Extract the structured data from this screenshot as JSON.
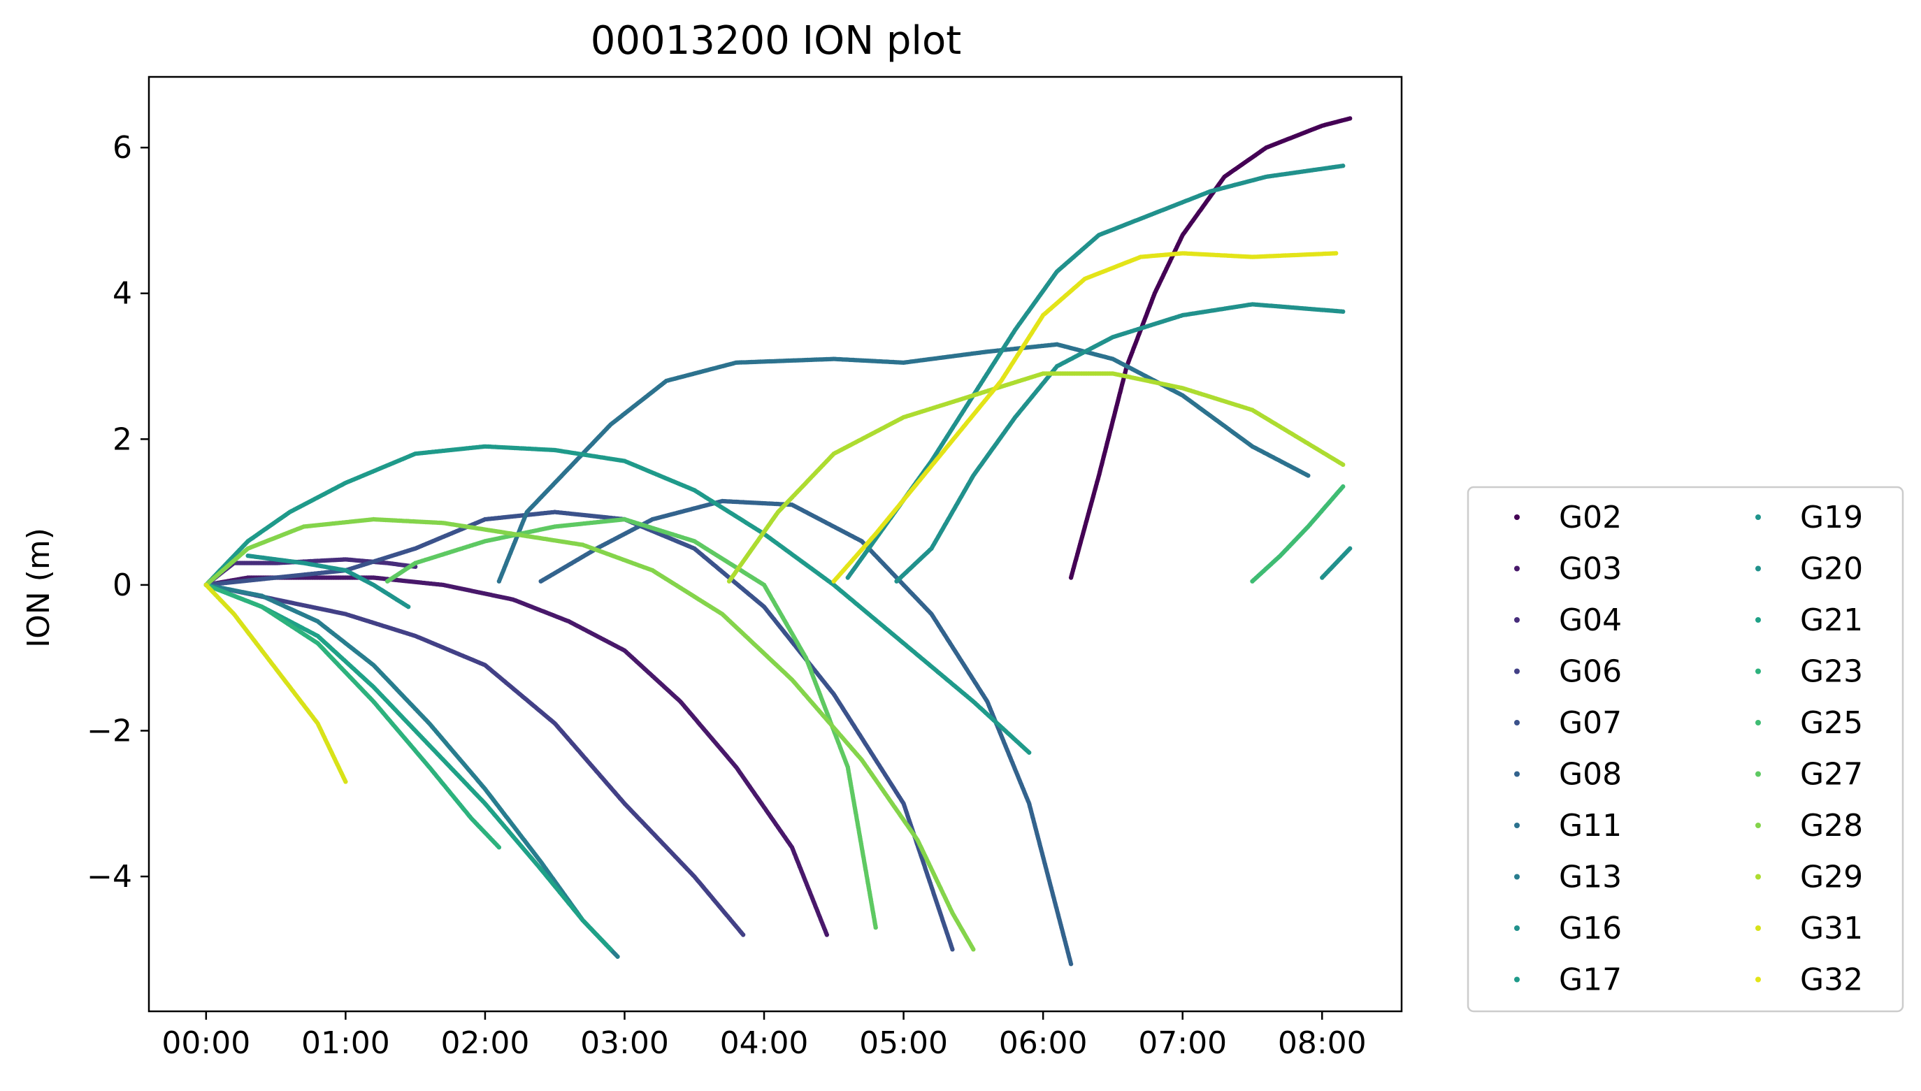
{
  "chart_data": {
    "type": "scatter",
    "title": "00013200 ION plot",
    "xlabel": "",
    "ylabel": "ION (m)",
    "x_unit": "hours",
    "xlim": [
      -0.41,
      8.57
    ],
    "ylim": [
      -5.85,
      6.97
    ],
    "x_ticks": [
      {
        "value": 0,
        "label": "00:00"
      },
      {
        "value": 1,
        "label": "01:00"
      },
      {
        "value": 2,
        "label": "02:00"
      },
      {
        "value": 3,
        "label": "03:00"
      },
      {
        "value": 4,
        "label": "04:00"
      },
      {
        "value": 5,
        "label": "05:00"
      },
      {
        "value": 6,
        "label": "06:00"
      },
      {
        "value": 7,
        "label": "07:00"
      },
      {
        "value": 8,
        "label": "08:00"
      }
    ],
    "y_ticks": [
      {
        "value": -4,
        "label": "−4"
      },
      {
        "value": -2,
        "label": "−2"
      },
      {
        "value": 0,
        "label": "0"
      },
      {
        "value": 2,
        "label": "2"
      },
      {
        "value": 4,
        "label": "4"
      },
      {
        "value": 6,
        "label": "6"
      }
    ],
    "grid": false,
    "legend": {
      "placement": "outside-right-bottom",
      "columns": 2
    },
    "series": [
      {
        "name": "G02",
        "color": "#440154",
        "segments": [
          [
            [
              6.2,
              0.1
            ],
            [
              6.4,
              1.5
            ],
            [
              6.6,
              3.0
            ],
            [
              6.8,
              4.0
            ],
            [
              7.0,
              4.8
            ],
            [
              7.3,
              5.6
            ],
            [
              7.6,
              6.0
            ],
            [
              8.0,
              6.3
            ],
            [
              8.2,
              6.4
            ]
          ]
        ]
      },
      {
        "name": "G03",
        "color": "#48186a",
        "segments": [
          [
            [
              0,
              0
            ],
            [
              0.3,
              0.1
            ],
            [
              0.7,
              0.1
            ],
            [
              1.2,
              0.1
            ],
            [
              1.7,
              0.0
            ],
            [
              2.2,
              -0.2
            ],
            [
              2.6,
              -0.5
            ],
            [
              3.0,
              -0.9
            ],
            [
              3.4,
              -1.6
            ],
            [
              3.8,
              -2.5
            ],
            [
              4.2,
              -3.6
            ],
            [
              4.45,
              -4.8
            ]
          ]
        ]
      },
      {
        "name": "G04",
        "color": "#472d7b",
        "segments": [
          [
            [
              0,
              0
            ],
            [
              0.2,
              0.3
            ],
            [
              0.5,
              0.3
            ],
            [
              1.0,
              0.35
            ],
            [
              1.3,
              0.3
            ],
            [
              1.5,
              0.25
            ]
          ]
        ]
      },
      {
        "name": "G06",
        "color": "#424086",
        "segments": [
          [
            [
              0,
              0
            ],
            [
              0.5,
              -0.2
            ],
            [
              1.0,
              -0.4
            ],
            [
              1.5,
              -0.7
            ],
            [
              2.0,
              -1.1
            ],
            [
              2.5,
              -1.9
            ],
            [
              3.0,
              -3.0
            ],
            [
              3.5,
              -4.0
            ],
            [
              3.85,
              -4.8
            ]
          ]
        ]
      },
      {
        "name": "G07",
        "color": "#3b528b",
        "segments": [
          [
            [
              0,
              0
            ],
            [
              0.5,
              0.1
            ],
            [
              1.0,
              0.2
            ],
            [
              1.5,
              0.5
            ],
            [
              2.0,
              0.9
            ],
            [
              2.5,
              1.0
            ],
            [
              3.0,
              0.9
            ],
            [
              3.5,
              0.5
            ],
            [
              4.0,
              -0.3
            ],
            [
              4.5,
              -1.5
            ],
            [
              5.0,
              -3.0
            ],
            [
              5.35,
              -5.0
            ]
          ]
        ]
      },
      {
        "name": "G08",
        "color": "#33638d",
        "segments": [
          [
            [
              2.4,
              0.05
            ],
            [
              2.8,
              0.5
            ],
            [
              3.2,
              0.9
            ],
            [
              3.7,
              1.15
            ],
            [
              4.2,
              1.1
            ],
            [
              4.7,
              0.6
            ],
            [
              5.2,
              -0.4
            ],
            [
              5.6,
              -1.6
            ],
            [
              5.9,
              -3.0
            ],
            [
              6.2,
              -5.2
            ]
          ]
        ]
      },
      {
        "name": "G11",
        "color": "#2c728e",
        "segments": [
          [
            [
              2.1,
              0.05
            ],
            [
              2.3,
              1.0
            ],
            [
              2.6,
              1.6
            ],
            [
              2.9,
              2.2
            ],
            [
              3.3,
              2.8
            ],
            [
              3.8,
              3.05
            ],
            [
              4.5,
              3.1
            ],
            [
              5.0,
              3.05
            ],
            [
              5.6,
              3.2
            ],
            [
              6.1,
              3.3
            ],
            [
              6.5,
              3.1
            ],
            [
              7.0,
              2.6
            ],
            [
              7.5,
              1.9
            ],
            [
              7.9,
              1.5
            ]
          ]
        ]
      },
      {
        "name": "G13",
        "color": "#287d8e",
        "segments": [
          [
            [
              0,
              0
            ],
            [
              0.4,
              -0.15
            ],
            [
              0.8,
              -0.5
            ],
            [
              1.2,
              -1.1
            ],
            [
              1.6,
              -1.9
            ],
            [
              2.0,
              -2.8
            ],
            [
              2.4,
              -3.8
            ],
            [
              2.7,
              -4.6
            ],
            [
              2.95,
              -5.1
            ]
          ]
        ]
      },
      {
        "name": "G16",
        "color": "#21918c",
        "segments": [
          [
            [
              4.95,
              0.05
            ],
            [
              5.2,
              0.5
            ],
            [
              5.5,
              1.5
            ],
            [
              5.8,
              2.3
            ],
            [
              6.1,
              3.0
            ],
            [
              6.5,
              3.4
            ],
            [
              7.0,
              3.7
            ],
            [
              7.5,
              3.85
            ],
            [
              8.15,
              3.75
            ]
          ],
          [
            [
              8.0,
              0.1
            ],
            [
              8.2,
              0.5
            ]
          ]
        ]
      },
      {
        "name": "G17",
        "color": "#1f9a8a",
        "segments": [
          [
            [
              0,
              0
            ],
            [
              0.3,
              0.6
            ],
            [
              0.6,
              1.0
            ],
            [
              1.0,
              1.4
            ],
            [
              1.5,
              1.8
            ],
            [
              2.0,
              1.9
            ],
            [
              2.5,
              1.85
            ],
            [
              3.0,
              1.7
            ],
            [
              3.5,
              1.3
            ],
            [
              4.0,
              0.7
            ],
            [
              4.5,
              0.0
            ],
            [
              5.0,
              -0.8
            ],
            [
              5.5,
              -1.6
            ],
            [
              5.9,
              -2.3
            ]
          ]
        ]
      },
      {
        "name": "G19",
        "color": "#1f948c",
        "segments": [
          [
            [
              0.3,
              0.4
            ],
            [
              0.7,
              0.3
            ],
            [
              1.0,
              0.2
            ],
            [
              1.2,
              0.0
            ],
            [
              1.45,
              -0.3
            ]
          ]
        ]
      },
      {
        "name": "G20",
        "color": "#21918c",
        "segments": [
          [
            [
              4.6,
              0.1
            ],
            [
              4.9,
              0.9
            ],
            [
              5.2,
              1.7
            ],
            [
              5.5,
              2.6
            ],
            [
              5.8,
              3.5
            ],
            [
              6.1,
              4.3
            ],
            [
              6.4,
              4.8
            ],
            [
              6.8,
              5.1
            ],
            [
              7.2,
              5.4
            ],
            [
              7.6,
              5.6
            ],
            [
              8.15,
              5.75
            ]
          ]
        ]
      },
      {
        "name": "G21",
        "color": "#1fa187",
        "segments": [
          [
            [
              0,
              0
            ],
            [
              0.4,
              -0.3
            ],
            [
              0.8,
              -0.7
            ],
            [
              1.2,
              -1.4
            ],
            [
              1.6,
              -2.2
            ],
            [
              2.0,
              -3.0
            ],
            [
              2.4,
              -3.9
            ],
            [
              2.7,
              -4.6
            ],
            [
              2.9,
              -5.0
            ]
          ]
        ]
      },
      {
        "name": "G23",
        "color": "#2db27d",
        "segments": [
          [
            [
              0,
              0
            ],
            [
              0.4,
              -0.3
            ],
            [
              0.8,
              -0.8
            ],
            [
              1.2,
              -1.6
            ],
            [
              1.6,
              -2.5
            ],
            [
              1.9,
              -3.2
            ],
            [
              2.1,
              -3.6
            ]
          ]
        ]
      },
      {
        "name": "G25",
        "color": "#3fbc73",
        "segments": [
          [
            [
              7.5,
              0.05
            ],
            [
              7.7,
              0.4
            ],
            [
              7.9,
              0.8
            ],
            [
              8.15,
              1.35
            ]
          ]
        ]
      },
      {
        "name": "G27",
        "color": "#5ec962",
        "segments": [
          [
            [
              1.3,
              0.05
            ],
            [
              1.5,
              0.3
            ],
            [
              2.0,
              0.6
            ],
            [
              2.5,
              0.8
            ],
            [
              3.0,
              0.9
            ],
            [
              3.5,
              0.6
            ],
            [
              4.0,
              0.0
            ],
            [
              4.3,
              -1.0
            ],
            [
              4.6,
              -2.5
            ],
            [
              4.8,
              -4.7
            ]
          ]
        ]
      },
      {
        "name": "G28",
        "color": "#84d44b",
        "segments": [
          [
            [
              0,
              0
            ],
            [
              0.3,
              0.5
            ],
            [
              0.7,
              0.8
            ],
            [
              1.2,
              0.9
            ],
            [
              1.7,
              0.85
            ],
            [
              2.2,
              0.7
            ],
            [
              2.7,
              0.55
            ],
            [
              3.2,
              0.2
            ],
            [
              3.7,
              -0.4
            ],
            [
              4.2,
              -1.3
            ],
            [
              4.7,
              -2.4
            ],
            [
              5.1,
              -3.5
            ],
            [
              5.35,
              -4.5
            ],
            [
              5.5,
              -5.0
            ]
          ]
        ]
      },
      {
        "name": "G29",
        "color": "#addc30",
        "segments": [
          [
            [
              3.75,
              0.05
            ],
            [
              4.1,
              1.0
            ],
            [
              4.5,
              1.8
            ],
            [
              5.0,
              2.3
            ],
            [
              5.5,
              2.6
            ],
            [
              6.0,
              2.9
            ],
            [
              6.5,
              2.9
            ],
            [
              7.0,
              2.7
            ],
            [
              7.5,
              2.4
            ],
            [
              8.15,
              1.65
            ]
          ]
        ]
      },
      {
        "name": "G31",
        "color": "#d8e219",
        "segments": [
          [
            [
              0,
              0
            ],
            [
              0.2,
              -0.4
            ],
            [
              0.4,
              -0.9
            ],
            [
              0.6,
              -1.4
            ],
            [
              0.8,
              -1.9
            ],
            [
              1.0,
              -2.7
            ]
          ]
        ]
      },
      {
        "name": "G32",
        "color": "#e3e418",
        "segments": [
          [
            [
              4.5,
              0.05
            ],
            [
              4.8,
              0.7
            ],
            [
              5.1,
              1.4
            ],
            [
              5.4,
              2.1
            ],
            [
              5.7,
              2.8
            ],
            [
              6.0,
              3.7
            ],
            [
              6.3,
              4.2
            ],
            [
              6.7,
              4.5
            ],
            [
              7.0,
              4.55
            ],
            [
              7.5,
              4.5
            ],
            [
              8.1,
              4.55
            ]
          ]
        ]
      }
    ]
  }
}
